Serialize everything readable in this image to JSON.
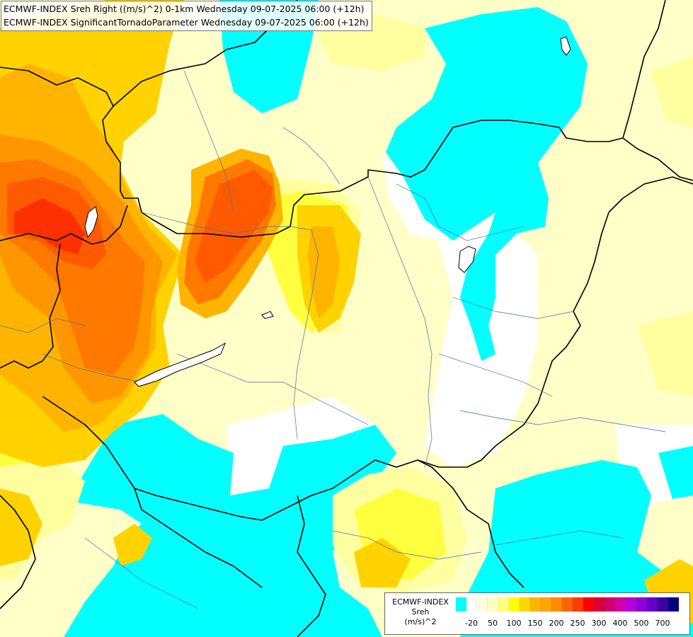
{
  "header": {
    "line1": "ECMWF-INDEX Sreh Right ((m/s)^2) 0-1km Wednesday 09-07-2025 06:00 (+12h)",
    "line2": "ECMWF-INDEX SignificantTornadoParameter Wednesday 09-07-2025 06:00 (+12h)"
  },
  "legend": {
    "title_line1": "ECMWF-INDEX",
    "title_line2": "Sreh",
    "title_line3": "(m/s)^2",
    "colors": [
      "#00ffff",
      "#ffffff",
      "#ffffe0",
      "#ffffc0",
      "#ffff80",
      "#ffff00",
      "#ffd700",
      "#ffb400",
      "#ffa500",
      "#ff8c00",
      "#ff6400",
      "#ff3c00",
      "#ff0000",
      "#dc0032",
      "#d2006e",
      "#d200aa",
      "#b400dc",
      "#8c00dc",
      "#6400c8",
      "#3c00a0",
      "#000080"
    ],
    "ticks": [
      "-20",
      "50",
      "100",
      "150",
      "200",
      "250",
      "300",
      "400",
      "500",
      "700"
    ]
  }
}
